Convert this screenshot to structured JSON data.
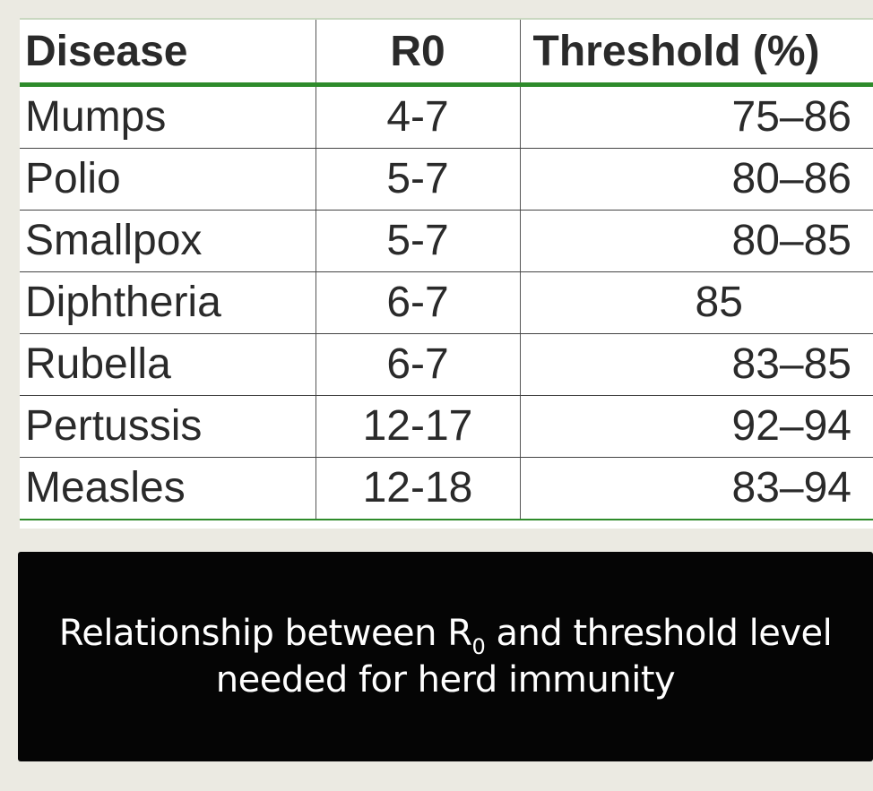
{
  "table": {
    "headers": [
      "Disease",
      "R0",
      "Threshold (%)"
    ],
    "rows": [
      {
        "disease": "Mumps",
        "r0": "4-7",
        "threshold": "75–86"
      },
      {
        "disease": "Polio",
        "r0": "5-7",
        "threshold": "80–86"
      },
      {
        "disease": "Smallpox",
        "r0": "5-7",
        "threshold": "80–85"
      },
      {
        "disease": "Diphtheria",
        "r0": "6-7",
        "threshold": "85"
      },
      {
        "disease": "Rubella",
        "r0": "6-7",
        "threshold": "83–85"
      },
      {
        "disease": "Pertussis",
        "r0": "12-17",
        "threshold": "92–94"
      },
      {
        "disease": "Measles",
        "r0": "12-18",
        "threshold": "83–94"
      }
    ]
  },
  "caption": {
    "line1_before": "Relationship between R",
    "line1_sub": "0",
    "line1_after": " and threshold level",
    "line2": "needed for herd immunity"
  },
  "colors": {
    "accent_green": "#2e8b2b",
    "caption_bg": "#050505",
    "page_bg": "#ebeae2"
  }
}
